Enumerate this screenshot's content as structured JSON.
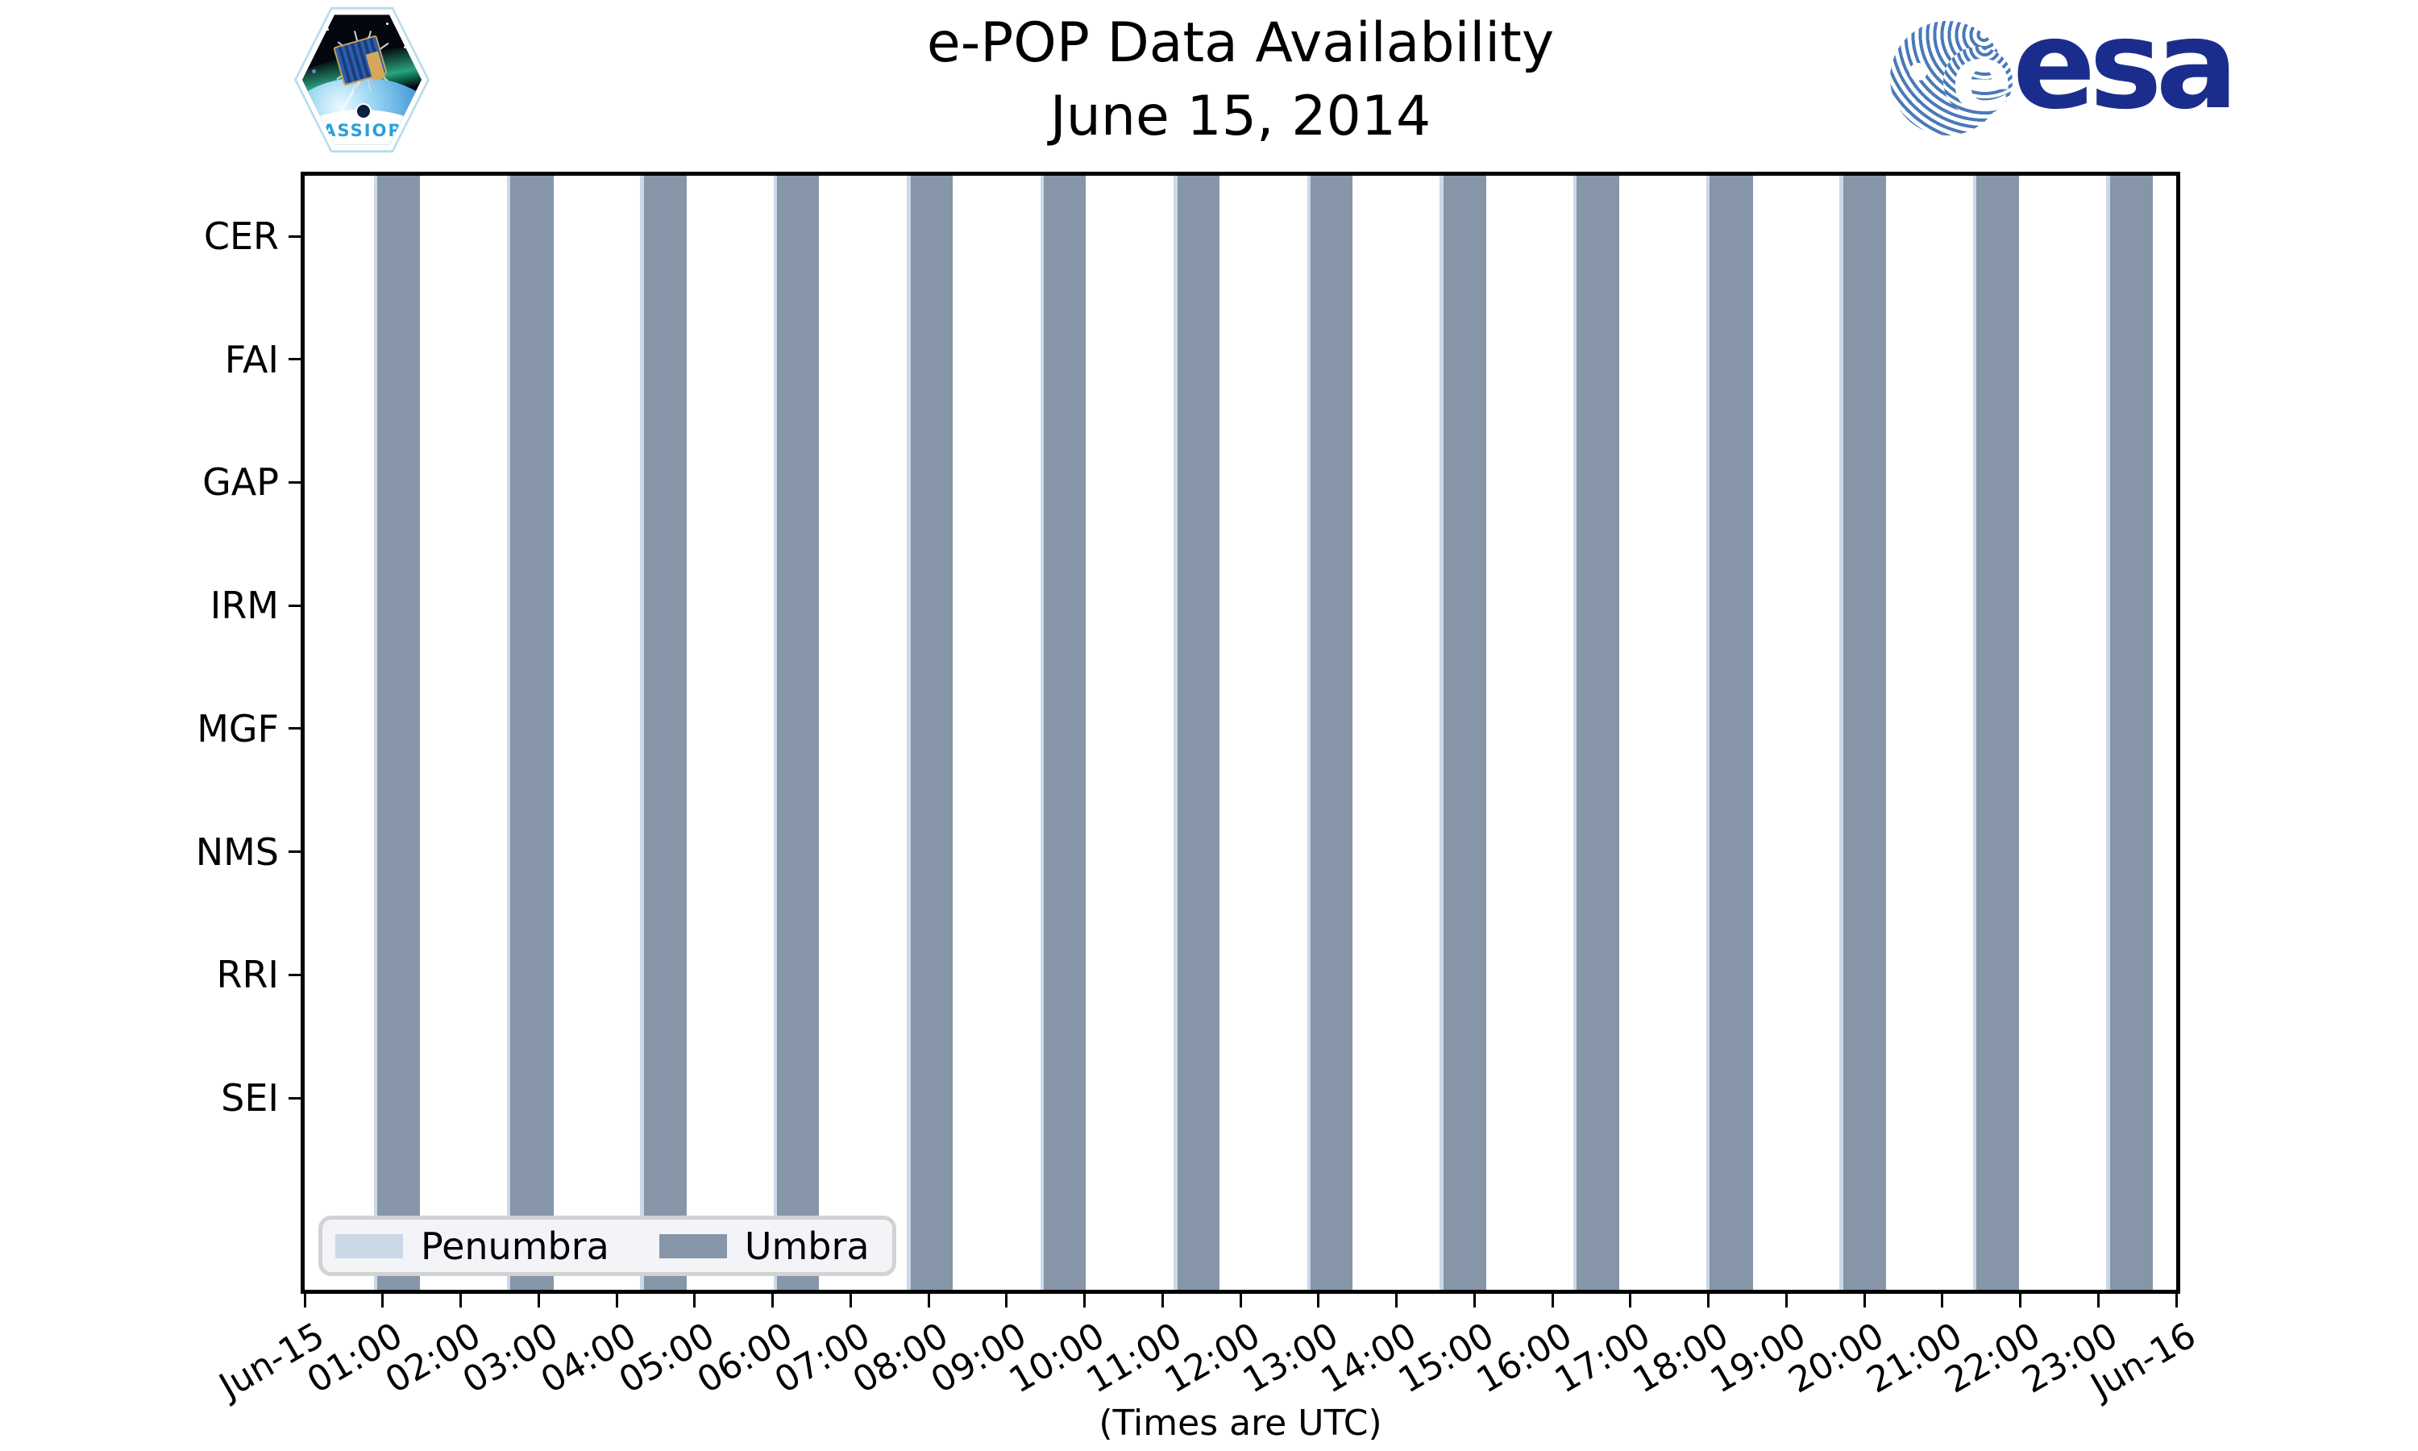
{
  "header": {
    "title_line1": "e-POP Data Availability",
    "title_line2": "June 15, 2014",
    "patch_text": "CASSIOPE",
    "esa_wordmark": "esa",
    "esa_globe_letter": "e"
  },
  "axis": {
    "xlabel": "(Times are UTC)",
    "x_ticks": [
      "Jun-15",
      "01:00",
      "02:00",
      "03:00",
      "04:00",
      "05:00",
      "06:00",
      "07:00",
      "08:00",
      "09:00",
      "10:00",
      "11:00",
      "12:00",
      "13:00",
      "14:00",
      "15:00",
      "16:00",
      "17:00",
      "18:00",
      "19:00",
      "20:00",
      "21:00",
      "22:00",
      "23:00",
      "Jun-16"
    ],
    "y_ticks": [
      "CER",
      "FAI",
      "GAP",
      "IRM",
      "MGF",
      "NMS",
      "RRI",
      "SEI"
    ]
  },
  "legend": {
    "items": [
      {
        "label": "Penumbra",
        "color": "#cbd8e8"
      },
      {
        "label": "Umbra",
        "color": "#8696a8"
      }
    ]
  },
  "colors": {
    "umbra": "#8696a8",
    "penumbra": "#cbd8e8",
    "axis": "#000000",
    "legend_bg": "#f2f4f8",
    "legend_border": "#d2d2d2",
    "esa_navy": "#1b2d8c",
    "esa_line_blue": "#4a7ab8",
    "cassiope_blue": "#2aa0d8"
  },
  "chart_data": {
    "type": "bar",
    "subtype": "eclipse-timeline: vertical time bands spanning all instrument rows",
    "title": "e-POP Data Availability",
    "subtitle": "June 15, 2014",
    "xlabel": "(Times are UTC)",
    "x_axis": {
      "start": "Jun-15 00:00",
      "end": "Jun-16 00:00",
      "tick_interval_hours": 1
    },
    "instruments": [
      "CER",
      "FAI",
      "GAP",
      "IRM",
      "MGF",
      "NMS",
      "RRI",
      "SEI"
    ],
    "grid": false,
    "legend_position": "lower left",
    "series": [
      {
        "name": "Umbra",
        "color": "#8696a8",
        "intervals_utc": [
          [
            "00:56",
            "01:29"
          ],
          [
            "02:38",
            "03:11"
          ],
          [
            "04:21",
            "04:54"
          ],
          [
            "06:03",
            "06:36"
          ],
          [
            "07:46",
            "08:19"
          ],
          [
            "09:29",
            "10:01"
          ],
          [
            "11:11",
            "11:44"
          ],
          [
            "12:54",
            "13:27"
          ],
          [
            "14:36",
            "15:09"
          ],
          [
            "16:19",
            "16:52"
          ],
          [
            "18:01",
            "18:34"
          ],
          [
            "19:44",
            "20:17"
          ],
          [
            "21:27",
            "21:59"
          ],
          [
            "23:09",
            "23:42"
          ]
        ],
        "intervals_hours": [
          [
            0.93,
            1.48
          ],
          [
            2.64,
            3.19
          ],
          [
            4.35,
            4.9
          ],
          [
            6.06,
            6.6
          ],
          [
            7.77,
            8.31
          ],
          [
            9.48,
            10.02
          ],
          [
            11.19,
            11.73
          ],
          [
            12.9,
            13.44
          ],
          [
            14.6,
            15.15
          ],
          [
            16.31,
            16.86
          ],
          [
            18.02,
            18.57
          ],
          [
            19.73,
            20.28
          ],
          [
            21.44,
            21.99
          ],
          [
            23.15,
            23.7
          ]
        ]
      },
      {
        "name": "Penumbra",
        "color": "#cbd8e8",
        "note": "thin strip (~2-3 min) visible at the entry edge of each umbra band",
        "lead_minutes": 2.5
      }
    ],
    "estimated_orbital_period_minutes": 102.5,
    "estimated_umbra_duration_minutes": 33
  }
}
